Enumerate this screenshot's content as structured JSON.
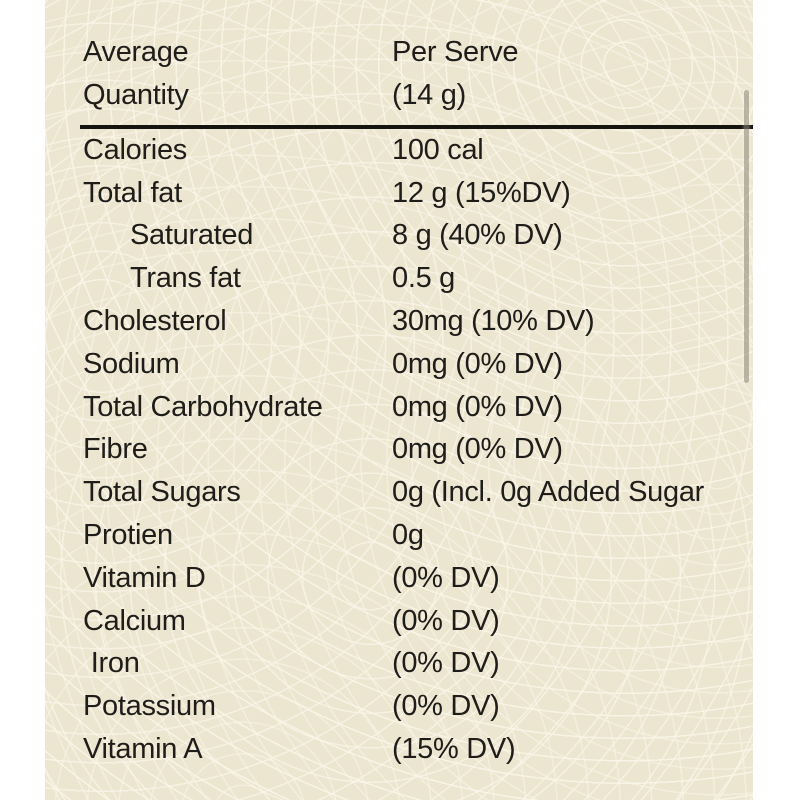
{
  "theme": {
    "page_bg": "#ffffff",
    "label_bg": "#ece5d0",
    "pattern_line": "#f7f2e2",
    "text_color": "#1e1d1a",
    "divider_color": "#15140f",
    "scrollbar_color": "#8d887a"
  },
  "header": {
    "col1_line1": "Average",
    "col1_line2": "Quantity",
    "col2_line1": "Per Serve",
    "col2_line2": "(14 g)"
  },
  "rows": [
    {
      "label": "Calories",
      "value": "100 cal",
      "indent": 0
    },
    {
      "label": "Total fat",
      "value": "12 g (15%DV)",
      "indent": 0
    },
    {
      "label": "Saturated",
      "value": "8 g (40% DV)",
      "indent": 1
    },
    {
      "label": "Trans fat",
      "value": "0.5 g",
      "indent": 1
    },
    {
      "label": "Cholesterol",
      "value": "30mg (10% DV)",
      "indent": 0
    },
    {
      "label": "Sodium",
      "value": "0mg (0% DV)",
      "indent": 0
    },
    {
      "label": "Total Carbohydrate",
      "value": "0mg (0% DV)",
      "indent": 0
    },
    {
      "label": "Fibre",
      "value": "0mg (0% DV)",
      "indent": 0
    },
    {
      "label": "Total Sugars",
      "value": "0g (Incl. 0g Added Sugar",
      "indent": 0
    },
    {
      "label": "Protien",
      "value": "0g",
      "indent": 0
    },
    {
      "label": "Vitamin D",
      "value": "(0% DV)",
      "indent": 0
    },
    {
      "label": "Calcium",
      "value": "(0% DV)",
      "indent": 0
    },
    {
      "label": " Iron",
      "value": "(0% DV)",
      "indent": 0
    },
    {
      "label": "Potassium",
      "value": "(0% DV)",
      "indent": 0
    },
    {
      "label": "Vitamin A",
      "value": "(15% DV)",
      "indent": 0
    }
  ]
}
